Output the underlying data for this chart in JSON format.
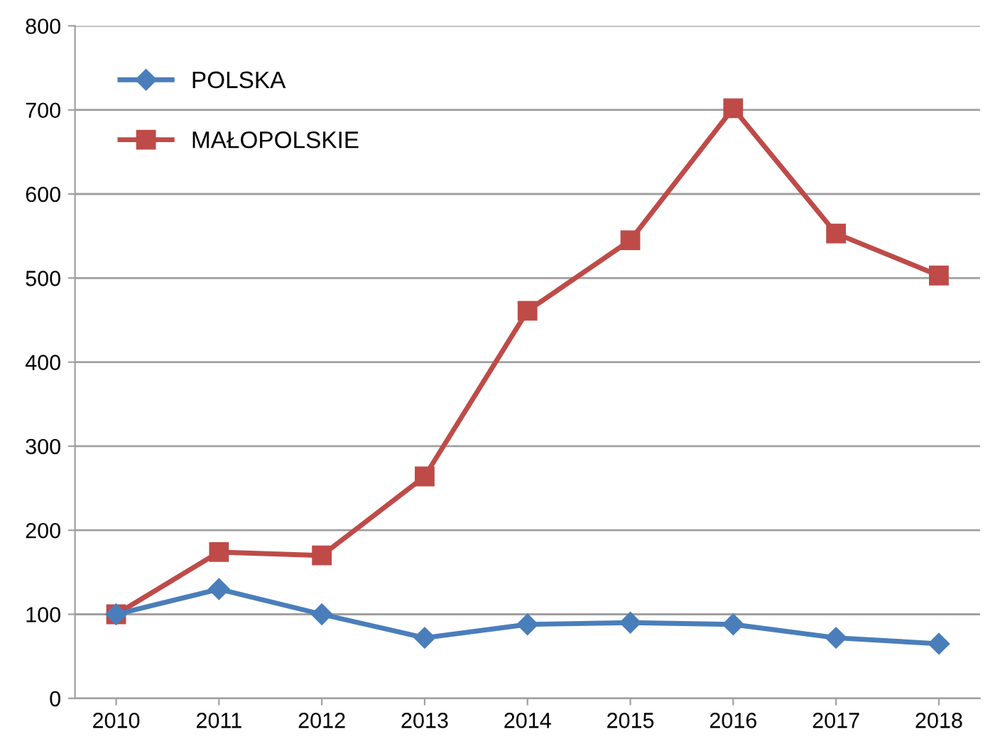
{
  "chart_data": {
    "type": "line",
    "categories": [
      "2010",
      "2011",
      "2012",
      "2013",
      "2014",
      "2015",
      "2016",
      "2017",
      "2018"
    ],
    "series": [
      {
        "name": "POLSKA",
        "color": "#4a7ebb",
        "marker": "diamond",
        "values": [
          100,
          130,
          100,
          72,
          88,
          90,
          88,
          72,
          65
        ]
      },
      {
        "name": "MAŁOPOLSKIE",
        "color": "#be4b48",
        "marker": "square",
        "values": [
          100,
          174,
          170,
          264,
          461,
          545,
          702,
          553,
          503
        ]
      }
    ],
    "ylim": [
      0,
      800
    ],
    "yticks": [
      0,
      100,
      200,
      300,
      400,
      500,
      600,
      700,
      800
    ],
    "grid": "y",
    "legend": "top left",
    "line_style": "solid"
  }
}
